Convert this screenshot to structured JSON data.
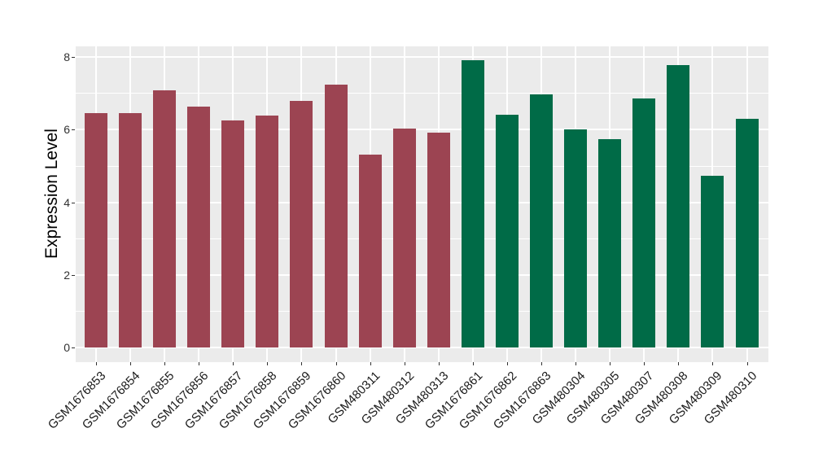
{
  "chart_data": {
    "type": "bar",
    "title": "",
    "xlabel": "",
    "ylabel": "Expression Level",
    "ylim": [
      -0.4,
      8.3
    ],
    "yticks": [
      0,
      2,
      4,
      6,
      8
    ],
    "minor_gridlines_at": [
      1,
      3,
      5,
      7
    ],
    "grid": true,
    "legend": "none",
    "panel_background": "#EBEBEB",
    "gridline_color": "#FFFFFF",
    "groups": [
      {
        "name": "group-1",
        "color": "#9C4452"
      },
      {
        "name": "group-2",
        "color": "#006B47"
      }
    ],
    "categories": [
      "GSM1676853",
      "GSM1676854",
      "GSM1676855",
      "GSM1676856",
      "GSM1676857",
      "GSM1676858",
      "GSM1676859",
      "GSM1676860",
      "GSM480311",
      "GSM480312",
      "GSM480313",
      "GSM1676861",
      "GSM1676862",
      "GSM1676863",
      "GSM480304",
      "GSM480305",
      "GSM480307",
      "GSM480308",
      "GSM480309",
      "GSM480310"
    ],
    "series": [
      {
        "name": "Expression Level",
        "values": [
          6.45,
          6.45,
          7.08,
          6.64,
          6.25,
          6.4,
          6.8,
          7.24,
          5.31,
          6.03,
          5.93,
          7.91,
          6.42,
          6.97,
          6.0,
          5.73,
          6.85,
          7.77,
          4.74,
          6.31
        ],
        "group_index": [
          0,
          0,
          0,
          0,
          0,
          0,
          0,
          0,
          0,
          0,
          0,
          1,
          1,
          1,
          1,
          1,
          1,
          1,
          1,
          1
        ]
      }
    ]
  }
}
